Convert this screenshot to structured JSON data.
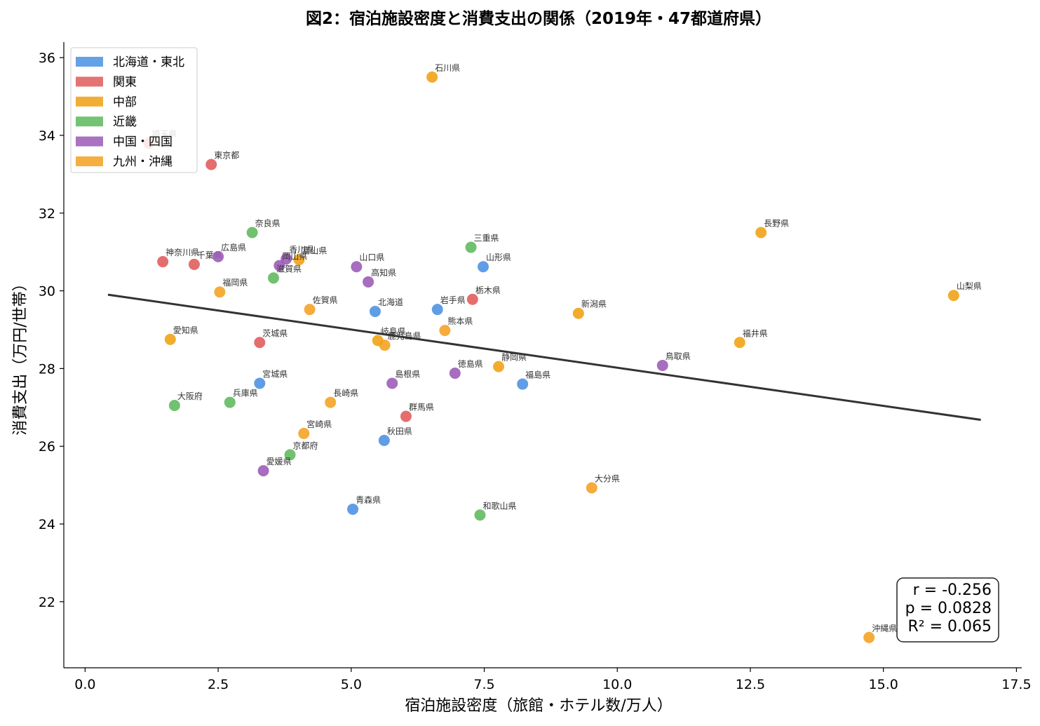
{
  "chart_data": {
    "type": "scatter",
    "title": "図2：宿泊施設密度と消費支出の関係（2019年・47都道府県）",
    "xlabel": "宿泊施設密度（旅館・ホテル数/万人）",
    "ylabel": "消費支出（万円/世帯）",
    "xlim": [
      -0.4,
      17.6
    ],
    "ylim": [
      20.3,
      36.4
    ],
    "xticks": [
      0.0,
      2.5,
      5.0,
      7.5,
      10.0,
      12.5,
      15.0,
      17.5
    ],
    "xtick_labels": [
      "0.0",
      "2.5",
      "5.0",
      "7.5",
      "10.0",
      "12.5",
      "15.0",
      "17.5"
    ],
    "yticks": [
      22,
      24,
      26,
      28,
      30,
      32,
      34,
      36
    ],
    "ytick_labels": [
      "22",
      "24",
      "26",
      "28",
      "30",
      "32",
      "34",
      "36"
    ],
    "grid": false,
    "legend_position": "top-left",
    "regions": [
      {
        "name": "北海道・東北",
        "color": "#4a90e2"
      },
      {
        "name": "関東",
        "color": "#e05a5a"
      },
      {
        "name": "中部",
        "color": "#f0a010"
      },
      {
        "name": "近畿",
        "color": "#5cb85c"
      },
      {
        "name": "中国・四国",
        "color": "#9b59b6"
      },
      {
        "name": "九州・沖縄",
        "color": "#f5a020"
      }
    ],
    "points": [
      {
        "label": "石川県",
        "x": 6.52,
        "y": 35.5,
        "region": 2
      },
      {
        "label": "東京都",
        "x": 2.37,
        "y": 33.25,
        "region": 1
      },
      {
        "label": "埼玉県",
        "x": 1.2,
        "y": 33.8,
        "region": 1
      },
      {
        "label": "奈良県",
        "x": 3.14,
        "y": 31.5,
        "region": 3
      },
      {
        "label": "長野県",
        "x": 12.7,
        "y": 31.5,
        "region": 2
      },
      {
        "label": "三重県",
        "x": 7.25,
        "y": 31.12,
        "region": 3
      },
      {
        "label": "神奈川県",
        "x": 1.46,
        "y": 30.75,
        "region": 1
      },
      {
        "label": "千葉県",
        "x": 2.05,
        "y": 30.68,
        "region": 1
      },
      {
        "label": "広島県",
        "x": 2.5,
        "y": 30.88,
        "region": 4
      },
      {
        "label": "香川県",
        "x": 3.78,
        "y": 30.82,
        "region": 4
      },
      {
        "label": "富山県",
        "x": 4.02,
        "y": 30.8,
        "region": 2
      },
      {
        "label": "岡山県",
        "x": 3.65,
        "y": 30.65,
        "region": 4
      },
      {
        "label": "山口県",
        "x": 5.1,
        "y": 30.62,
        "region": 4
      },
      {
        "label": "山形県",
        "x": 7.48,
        "y": 30.62,
        "region": 0
      },
      {
        "label": "滋賀県",
        "x": 3.54,
        "y": 30.33,
        "region": 3
      },
      {
        "label": "高知県",
        "x": 5.32,
        "y": 30.23,
        "region": 4
      },
      {
        "label": "福岡県",
        "x": 2.53,
        "y": 29.97,
        "region": 5
      },
      {
        "label": "山梨県",
        "x": 16.32,
        "y": 29.88,
        "region": 2
      },
      {
        "label": "栃木県",
        "x": 7.28,
        "y": 29.78,
        "region": 1
      },
      {
        "label": "佐賀県",
        "x": 4.22,
        "y": 29.52,
        "region": 5
      },
      {
        "label": "岩手県",
        "x": 6.62,
        "y": 29.52,
        "region": 0
      },
      {
        "label": "北海道",
        "x": 5.45,
        "y": 29.47,
        "region": 0
      },
      {
        "label": "新潟県",
        "x": 9.27,
        "y": 29.42,
        "region": 2
      },
      {
        "label": "熊本県",
        "x": 6.76,
        "y": 28.98,
        "region": 5
      },
      {
        "label": "愛知県",
        "x": 1.6,
        "y": 28.75,
        "region": 2
      },
      {
        "label": "岐阜県",
        "x": 5.5,
        "y": 28.72,
        "region": 2
      },
      {
        "label": "茨城県",
        "x": 3.28,
        "y": 28.67,
        "region": 1
      },
      {
        "label": "福井県",
        "x": 12.3,
        "y": 28.67,
        "region": 2
      },
      {
        "label": "鹿児島県",
        "x": 5.63,
        "y": 28.6,
        "region": 5
      },
      {
        "label": "鳥取県",
        "x": 10.85,
        "y": 28.08,
        "region": 4
      },
      {
        "label": "静岡県",
        "x": 7.77,
        "y": 28.05,
        "region": 2
      },
      {
        "label": "徳島県",
        "x": 6.95,
        "y": 27.88,
        "region": 4
      },
      {
        "label": "島根県",
        "x": 5.77,
        "y": 27.62,
        "region": 4
      },
      {
        "label": "宮城県",
        "x": 3.28,
        "y": 27.62,
        "region": 0
      },
      {
        "label": "福島県",
        "x": 8.22,
        "y": 27.6,
        "region": 0
      },
      {
        "label": "兵庫県",
        "x": 2.72,
        "y": 27.13,
        "region": 3
      },
      {
        "label": "長崎県",
        "x": 4.61,
        "y": 27.13,
        "region": 5
      },
      {
        "label": "大阪府",
        "x": 1.68,
        "y": 27.05,
        "region": 3
      },
      {
        "label": "群馬県",
        "x": 6.03,
        "y": 26.77,
        "region": 1
      },
      {
        "label": "宮崎県",
        "x": 4.11,
        "y": 26.33,
        "region": 5
      },
      {
        "label": "秋田県",
        "x": 5.62,
        "y": 26.15,
        "region": 0
      },
      {
        "label": "京都府",
        "x": 3.85,
        "y": 25.78,
        "region": 3
      },
      {
        "label": "愛媛県",
        "x": 3.35,
        "y": 25.37,
        "region": 4
      },
      {
        "label": "大分県",
        "x": 9.52,
        "y": 24.93,
        "region": 5
      },
      {
        "label": "青森県",
        "x": 5.03,
        "y": 24.38,
        "region": 0
      },
      {
        "label": "和歌山県",
        "x": 7.42,
        "y": 24.23,
        "region": 3
      },
      {
        "label": "沖縄県",
        "x": 14.73,
        "y": 21.08,
        "region": 5
      }
    ],
    "regression_line": {
      "x": [
        0.43,
        16.83
      ],
      "y": [
        29.9,
        26.68
      ],
      "color": "#333333"
    },
    "stats": [
      "r = -0.256",
      "p = 0.0828",
      "R² = 0.065"
    ]
  }
}
